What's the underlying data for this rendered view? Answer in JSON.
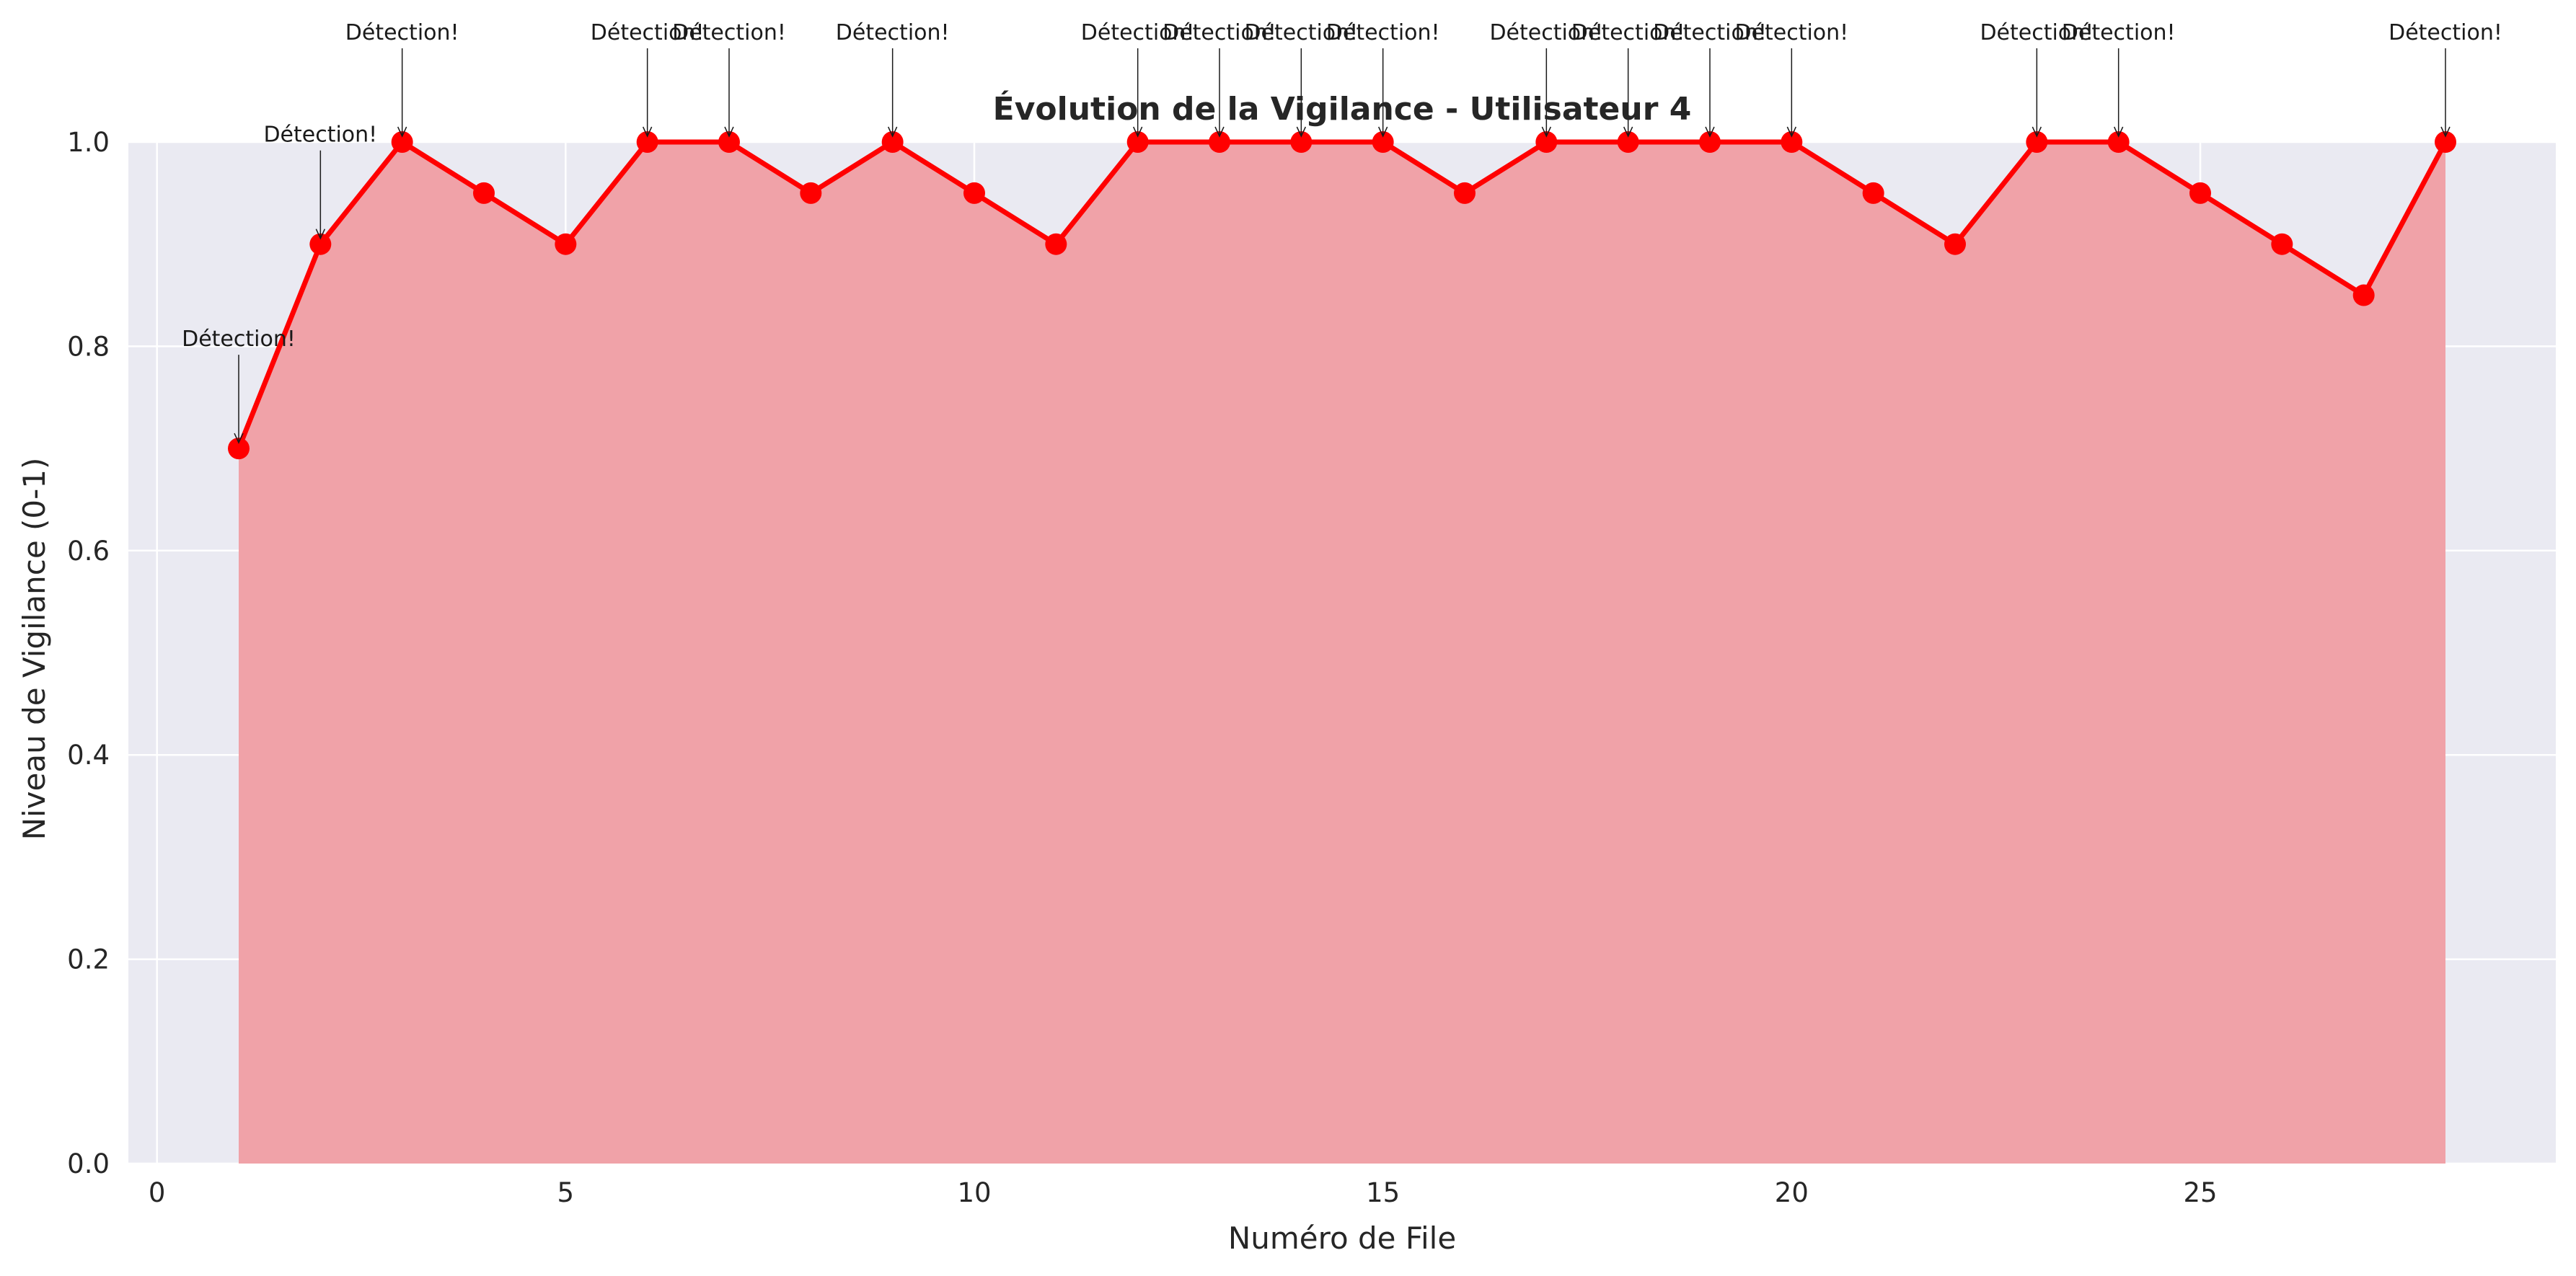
{
  "chart_data": {
    "type": "area",
    "title": "Évolution de la Vigilance - Utilisateur 4",
    "xlabel": "Numéro de File",
    "ylabel": "Niveau de Vigilance (0-1)",
    "xlim": [
      -0.35,
      29.35
    ],
    "ylim": [
      0,
      1.0
    ],
    "xticks": [
      0,
      5,
      10,
      15,
      20,
      25
    ],
    "yticks": [
      0.0,
      0.2,
      0.4,
      0.6,
      0.8,
      1.0
    ],
    "grid": true,
    "x": [
      1,
      2,
      3,
      4,
      5,
      6,
      7,
      8,
      9,
      10,
      11,
      12,
      13,
      14,
      15,
      16,
      17,
      18,
      19,
      20,
      21,
      22,
      23,
      24,
      25,
      26,
      27,
      28
    ],
    "y": [
      0.7,
      0.9,
      1.0,
      0.95,
      0.9,
      1.0,
      1.0,
      0.95,
      1.0,
      0.95,
      0.9,
      1.0,
      1.0,
      1.0,
      1.0,
      0.95,
      1.0,
      1.0,
      1.0,
      1.0,
      0.95,
      0.9,
      1.0,
      1.0,
      0.95,
      0.9,
      0.85,
      1.0
    ],
    "annotation_text": "Détection!",
    "annotations_x": [
      1,
      2,
      3,
      6,
      7,
      9,
      12,
      13,
      14,
      15,
      17,
      18,
      19,
      20,
      23,
      24,
      28
    ],
    "colors": {
      "line": "#ff0000",
      "fill": "#f0a2a8",
      "plot_bg": "#eaeaf2",
      "grid": "#ffffff",
      "text": "#262626"
    }
  }
}
